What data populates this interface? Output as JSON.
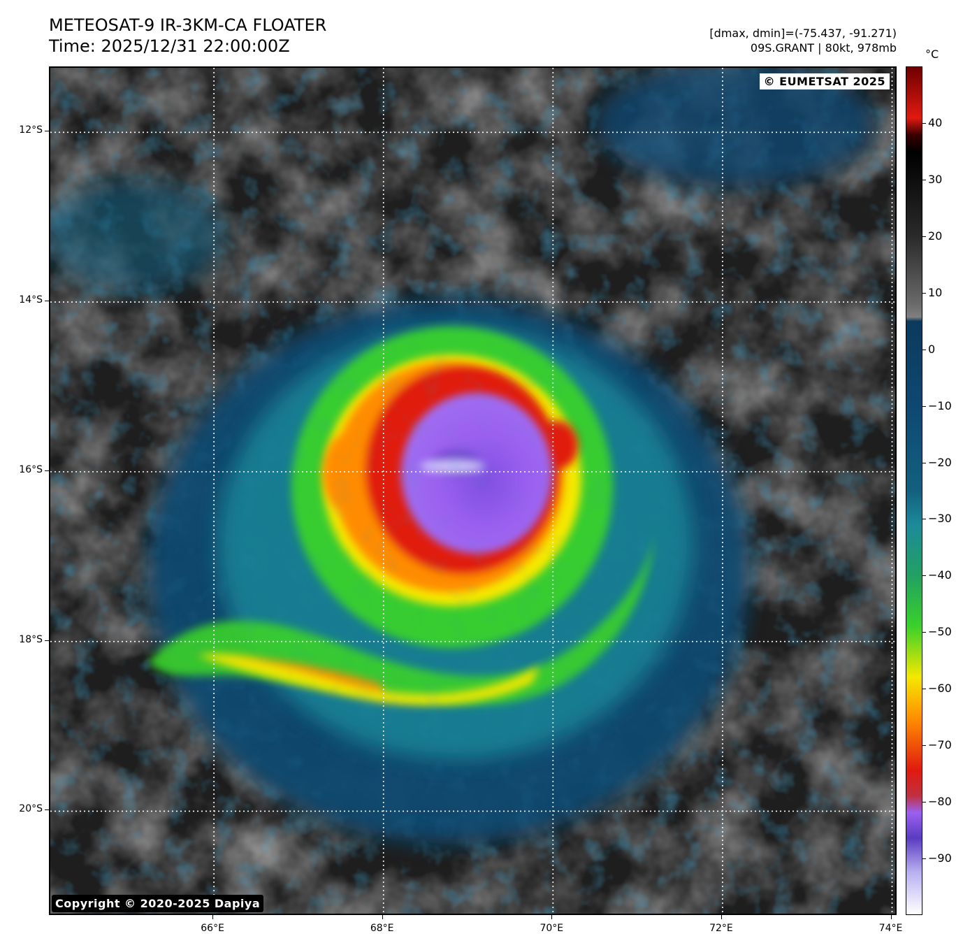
{
  "header": {
    "title_line1": "METEOSAT-9 IR-3KM-CA FLOATER",
    "title_line2": "Time: 2025/12/31 22:00:00Z",
    "info_line1": "[dmax, dmin]=(-75.437, -91.271)",
    "info_line2": "09S.GRANT | 80kt, 978mb"
  },
  "map": {
    "copyright_top": "© EUMETSAT 2025",
    "copyright_bottom": "Copyright © 2020-2025 Dapiya",
    "lat_labels": [
      "12°S",
      "14°S",
      "16°S",
      "18°S",
      "20°S"
    ],
    "lon_labels": [
      "66°E",
      "68°E",
      "70°E",
      "72°E",
      "74°E"
    ],
    "lon_range": [
      64.07,
      74.07
    ],
    "lat_range": [
      -11.24,
      -21.24
    ],
    "storm_center": {
      "lon": 69.0,
      "lat": -15.85
    }
  },
  "colorbar": {
    "unit": "°C",
    "labels": [
      "40",
      "30",
      "20",
      "10",
      "0",
      "−10",
      "−20",
      "−30",
      "−40",
      "−50",
      "−60",
      "−70",
      "−80",
      "−90"
    ],
    "range": [
      -100,
      50
    ],
    "colors": {
      "warm_top": "#6e0000",
      "red": "#e01a10",
      "orange": "#ff8c00",
      "yellow": "#f5e800",
      "green": "#3ad12a",
      "teal": "#1c8a9a",
      "blue": "#0e4870",
      "gray": "#808080",
      "black": "#000000",
      "purple": "#9b60f0",
      "white": "#ffffff"
    }
  }
}
